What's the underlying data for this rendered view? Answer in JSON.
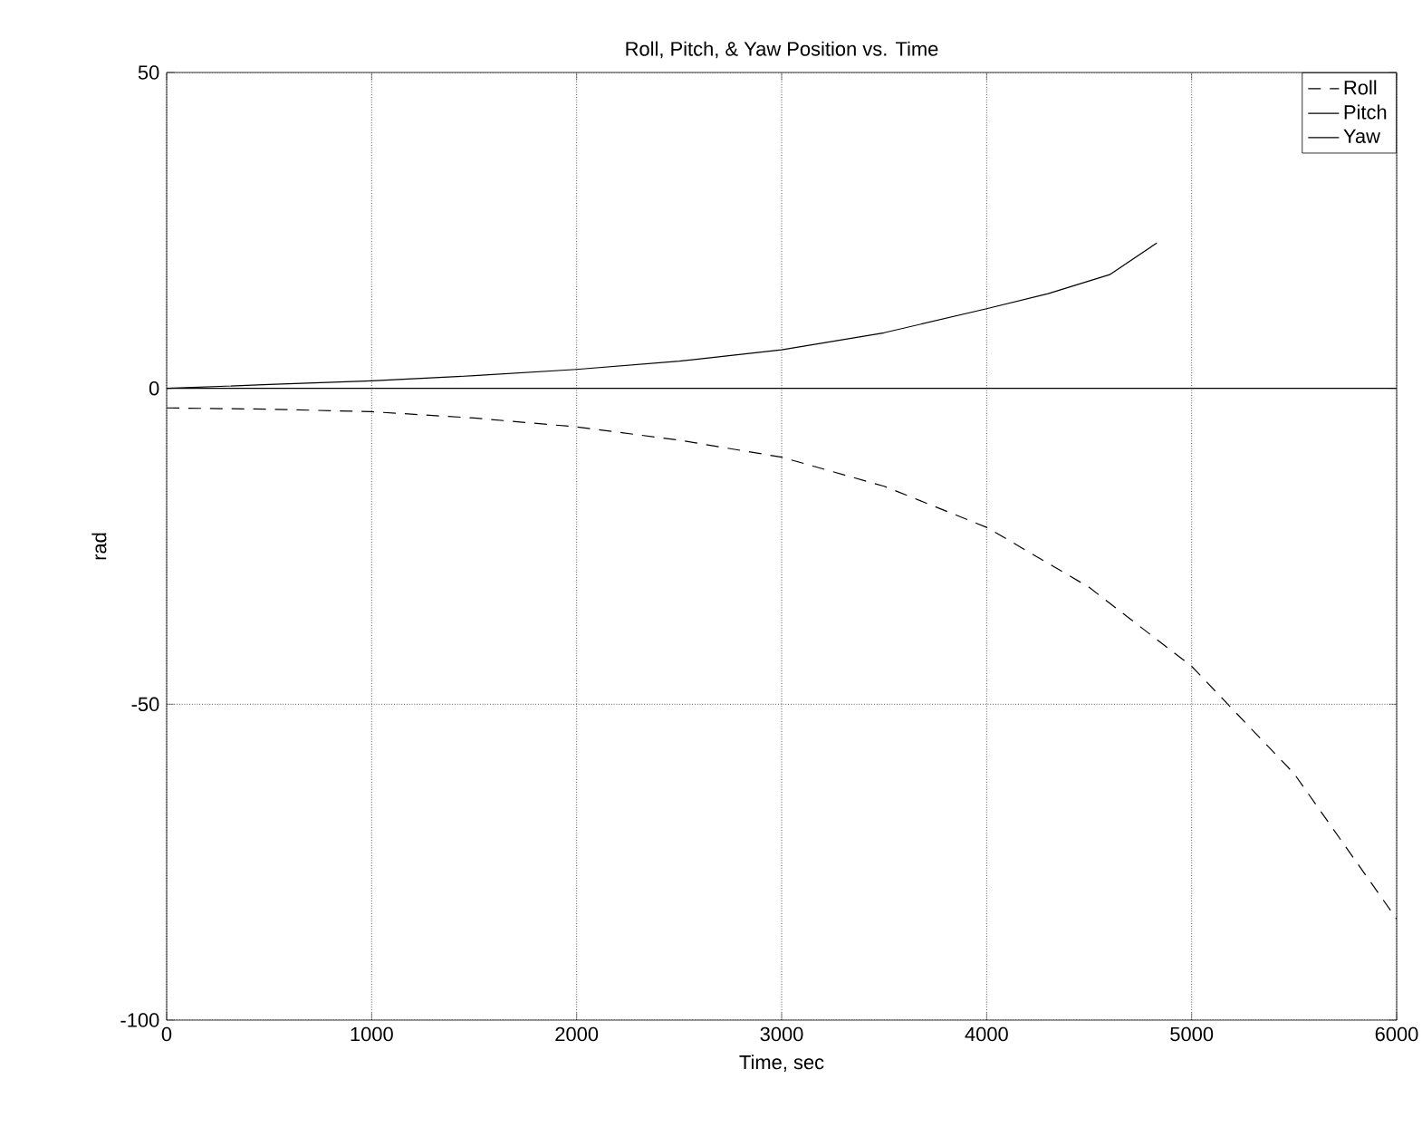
{
  "chart_data": {
    "type": "line",
    "title": "Roll, Pitch, & Yaw Position vs. Time",
    "xlabel": "Time, sec",
    "ylabel": "rad",
    "xlim": [
      0,
      6000
    ],
    "ylim": [
      -100,
      50
    ],
    "xticks": [
      0,
      1000,
      2000,
      3000,
      4000,
      5000,
      6000
    ],
    "yticks": [
      -100,
      -50,
      0,
      50
    ],
    "grid": true,
    "legend": "top right",
    "marker": "none",
    "series": [
      {
        "name": "Roll",
        "color": "#000000",
        "line_style": "dashed",
        "x": [
          0,
          500,
          1000,
          1500,
          2000,
          2500,
          3000,
          3500,
          4000,
          4500,
          5000,
          5500,
          6000
        ],
        "values": [
          -3.1,
          -3.3,
          -3.7,
          -4.7,
          -6.1,
          -8.2,
          -10.9,
          -15.5,
          -22,
          -31.5,
          -44,
          -61,
          -84
        ]
      },
      {
        "name": "Pitch",
        "color": "#000000",
        "line_style": "solid",
        "x": [
          0,
          6000
        ],
        "values": [
          0,
          0
        ]
      },
      {
        "name": "Yaw",
        "color": "#000000",
        "line_style": "solid",
        "x": [
          0,
          500,
          1000,
          1500,
          2000,
          2500,
          3000,
          3500,
          4000,
          4300,
          4600,
          4830
        ],
        "values": [
          0,
          0.6,
          1.2,
          2,
          3,
          4.3,
          6.1,
          8.8,
          12.6,
          15,
          18,
          23
        ]
      }
    ]
  }
}
